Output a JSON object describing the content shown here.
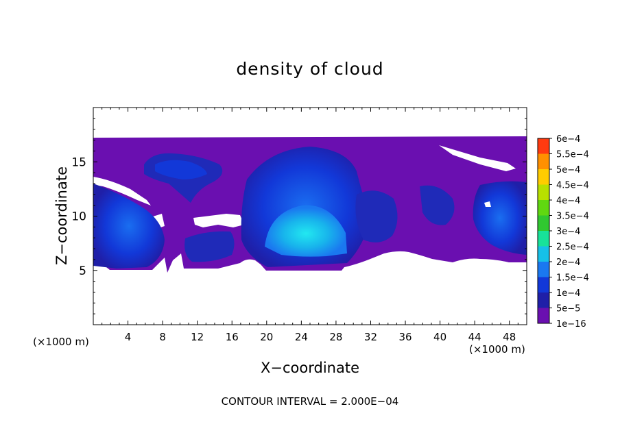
{
  "chart_data": {
    "type": "heatmap",
    "title": "density of cloud",
    "xlabel": "X−coordinate",
    "ylabel": "Z−coordinate",
    "x_unit_note_left": "(×1000 m)",
    "x_unit_note_right": "(×1000 m)",
    "footer": "CONTOUR INTERVAL = 2.000E−04",
    "xlim": [
      0,
      50
    ],
    "ylim": [
      0,
      20
    ],
    "x_ticks": [
      4,
      8,
      12,
      16,
      20,
      24,
      28,
      32,
      36,
      40,
      44,
      48
    ],
    "x_tick_labels": [
      "4",
      "8",
      "12",
      "16",
      "20",
      "24",
      "28",
      "32",
      "36",
      "40",
      "44",
      "48"
    ],
    "y_ticks": [
      5,
      10,
      15
    ],
    "y_tick_labels": [
      "5",
      "10",
      "15"
    ],
    "colorbar": {
      "labels": [
        "1e−16",
        "5e−5",
        "1e−4",
        "1.5e−4",
        "2e−4",
        "2.5e−4",
        "3e−4",
        "3.5e−4",
        "4e−4",
        "4.5e−4",
        "5e−4",
        "5.5e−4",
        "6e−4"
      ],
      "colors": [
        "#6a0fb0",
        "#1f1fa8",
        "#1238d8",
        "#1a78f0",
        "#16c0e8",
        "#18e29a",
        "#30c830",
        "#60d810",
        "#b8e000",
        "#ffcc00",
        "#ff9000",
        "#ff3a10",
        "#f47a7a"
      ]
    },
    "fields": [
      {
        "shape": "cloud-layer-purple",
        "x_range": [
          0,
          50
        ],
        "z_range": [
          5,
          17
        ],
        "level": "1e−16"
      },
      {
        "shape": "left-blob",
        "center": [
          3.5,
          9.5
        ],
        "level": "1e−4"
      },
      {
        "shape": "upper-left-lobe",
        "center": [
          9,
          14.8
        ],
        "level": "5e−5"
      },
      {
        "shape": "central-cell",
        "center": [
          25,
          10
        ],
        "level": "1.5e−4"
      },
      {
        "shape": "central-core",
        "center": [
          25,
          9.5
        ],
        "level": "2e−4"
      },
      {
        "shape": "right-blob",
        "center": [
          47,
          10
        ],
        "level": "5e−5"
      }
    ]
  }
}
